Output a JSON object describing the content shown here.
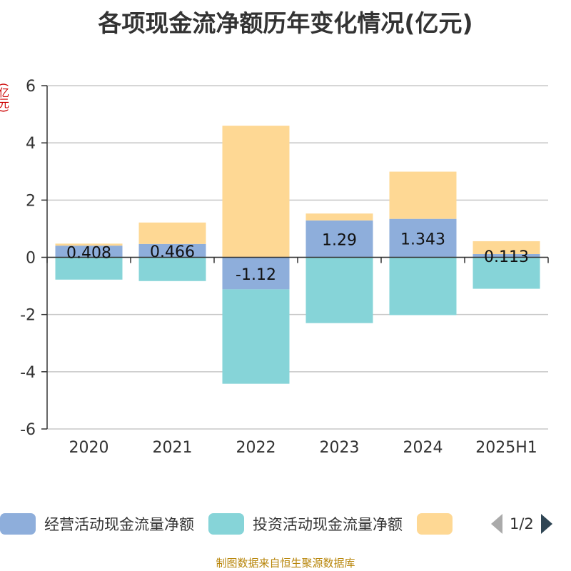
{
  "title": "各项现金流净额历年变化情况(亿元)",
  "unit_label": "(亿元)",
  "source": "制图数据来自恒生聚源数据库",
  "legend": {
    "items": [
      {
        "label": "经营活动现金流量净额",
        "color": "#8eaedb"
      },
      {
        "label": "投资活动现金流量净额",
        "color": "#86d4d8"
      },
      {
        "label": "",
        "color": "#fed894"
      }
    ],
    "page": "1/2"
  },
  "chart_data": {
    "type": "bar",
    "stacked": true,
    "categories": [
      "2020",
      "2021",
      "2022",
      "2023",
      "2024",
      "2025H1"
    ],
    "series": [
      {
        "name": "经营活动现金流量净额",
        "color": "#8eaedb",
        "values": [
          0.408,
          0.466,
          -1.12,
          1.29,
          1.343,
          0.113
        ],
        "labels": [
          "0.408",
          "0.466",
          "-1.12",
          "1.29",
          "1.343",
          "0.113"
        ]
      },
      {
        "name": "投资活动现金流量净额",
        "color": "#86d4d8",
        "values": [
          -0.78,
          -0.83,
          -3.3,
          -2.3,
          -2.02,
          -1.1
        ]
      },
      {
        "name": "",
        "color": "#fed894",
        "values": [
          0.07,
          0.75,
          4.6,
          0.24,
          1.65,
          0.45
        ]
      }
    ],
    "ylim": [
      -6,
      6
    ],
    "yticks": [
      6,
      4,
      2,
      0,
      -2,
      -4,
      -6
    ],
    "grid": true,
    "legend_position": "bottom"
  }
}
